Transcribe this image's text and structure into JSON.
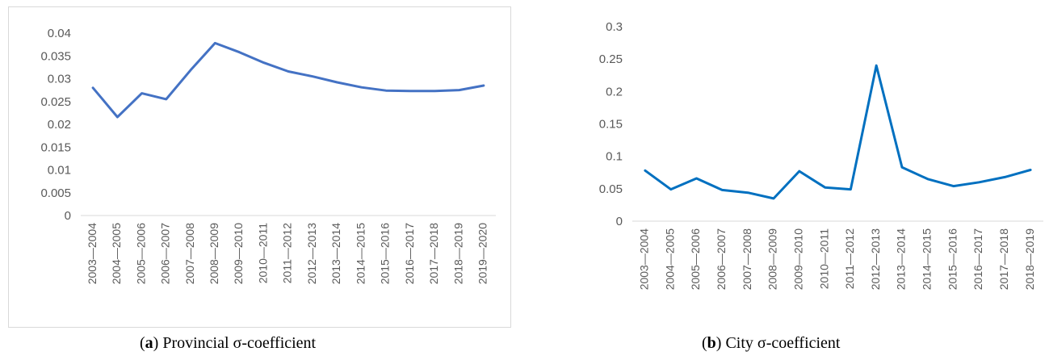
{
  "charts": [
    {
      "caption": {
        "prefix": "(",
        "letter": "a",
        "suffix": ") Provincial σ-coefficient"
      },
      "color": "#4472C4"
    },
    {
      "caption": {
        "prefix": "(",
        "letter": "b",
        "suffix": ") City σ-coefficient"
      },
      "color": "#0070C0"
    }
  ],
  "chart_data": [
    {
      "type": "line",
      "title": "",
      "xlabel": "",
      "ylabel": "",
      "categories": [
        "2003—2004",
        "2004—2005",
        "2005—2006",
        "2006—2007",
        "2007—2008",
        "2008—2009",
        "2009—2010",
        "2010—2011",
        "2011—2012",
        "2012—2013",
        "2013—2014",
        "2014—2015",
        "2015—2016",
        "2016—2017",
        "2017—2018",
        "2018—2019",
        "2019—2020"
      ],
      "values": [
        0.028,
        0.0216,
        0.0268,
        0.0255,
        0.0319,
        0.0378,
        0.0358,
        0.0335,
        0.0316,
        0.0305,
        0.0292,
        0.0281,
        0.0274,
        0.0273,
        0.0273,
        0.0275,
        0.0285
      ],
      "yticks": [
        "0",
        "0.005",
        "0.01",
        "0.015",
        "0.02",
        "0.025",
        "0.03",
        "0.035",
        "0.04"
      ],
      "ylim": [
        0,
        0.04
      ],
      "grid": false,
      "legend": "none"
    },
    {
      "type": "line",
      "title": "",
      "xlabel": "",
      "ylabel": "",
      "categories": [
        "2003—2004",
        "2004—2005",
        "2005—2006",
        "2006—2007",
        "2007—2008",
        "2008—2009",
        "2009—2010",
        "2010—2011",
        "2011—2012",
        "2012—2013",
        "2013—2014",
        "2014—2015",
        "2015—2016",
        "2016—2017",
        "2017—2018",
        "2018—2019"
      ],
      "values": [
        0.078,
        0.049,
        0.066,
        0.048,
        0.044,
        0.035,
        0.077,
        0.052,
        0.049,
        0.24,
        0.083,
        0.065,
        0.054,
        0.06,
        0.068,
        0.079
      ],
      "yticks": [
        "0",
        "0.05",
        "0.1",
        "0.15",
        "0.2",
        "0.25",
        "0.3"
      ],
      "ylim": [
        0,
        0.3
      ],
      "grid": false,
      "legend": "none"
    }
  ]
}
